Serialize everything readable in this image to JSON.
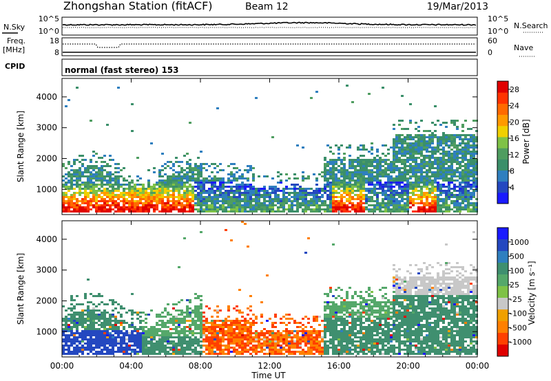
{
  "header": {
    "station": "Zhongshan Station (fitACF)",
    "beam": "Beam 12",
    "date": "19/Mar/2013"
  },
  "strip_noise": {
    "left_label": "N.Sky",
    "left_top_tick": "10^5",
    "left_bottom_tick": "10^0",
    "right_top_tick": "10^5",
    "right_bottom_tick": "10^0",
    "right_label": "N.Search"
  },
  "strip_freq": {
    "left_label_top": "Freq.",
    "left_label_unit": "[MHz]",
    "left_top_tick": "18",
    "left_bottom_tick": "8",
    "right_top_tick": "60",
    "right_bottom_tick": "0",
    "right_label": "Nave"
  },
  "strip_cpid": {
    "label": "CPID",
    "text": "normal (fast stereo) 153"
  },
  "colors": {
    "power": [
      "#1a1aff",
      "#2448c0",
      "#2f7fbf",
      "#3b8f6a",
      "#4f9d60",
      "#7fc247",
      "#f0d000",
      "#ff9a00",
      "#ff6a00",
      "#ff3300",
      "#e00000"
    ],
    "velocity": [
      "#1a1aff",
      "#2448c0",
      "#2f7fbf",
      "#3f8f6f",
      "#55a86a",
      "#7fc247",
      "#c8c8c8",
      "#f0a000",
      "#ff8000",
      "#ff4000",
      "#e00000"
    ]
  },
  "chart_data": [
    {
      "type": "heatmap",
      "title": "",
      "xlabel": "Time UT",
      "ylabel": "Slant Range [km]",
      "x_ticks": [
        "00:00",
        "04:00",
        "08:00",
        "12:00",
        "16:00",
        "20:00",
        "00:00"
      ],
      "y_ticks": [
        "1000",
        "2000",
        "3000",
        "4000"
      ],
      "xlim_hours": [
        0,
        24
      ],
      "ylim": [
        180,
        4600
      ],
      "colorbar": {
        "label": "Power [dB]",
        "ticks": [
          "4",
          "8",
          "12",
          "16",
          "20",
          "24",
          "28"
        ],
        "range": [
          0,
          30
        ]
      }
    },
    {
      "type": "heatmap",
      "title": "",
      "xlabel": "Time UT",
      "ylabel": "Slant Range [km]",
      "x_ticks": [
        "00:00",
        "04:00",
        "08:00",
        "12:00",
        "16:00",
        "20:00",
        "00:00"
      ],
      "y_ticks": [
        "1000",
        "2000",
        "3000",
        "4000"
      ],
      "xlim_hours": [
        0,
        24
      ],
      "ylim": [
        180,
        4600
      ],
      "colorbar": {
        "label": "Velocity [m s⁻¹]",
        "ticks": [
          "1000",
          "500",
          "100",
          "25",
          "-25",
          "-100",
          "-500",
          "-1000"
        ]
      }
    }
  ]
}
